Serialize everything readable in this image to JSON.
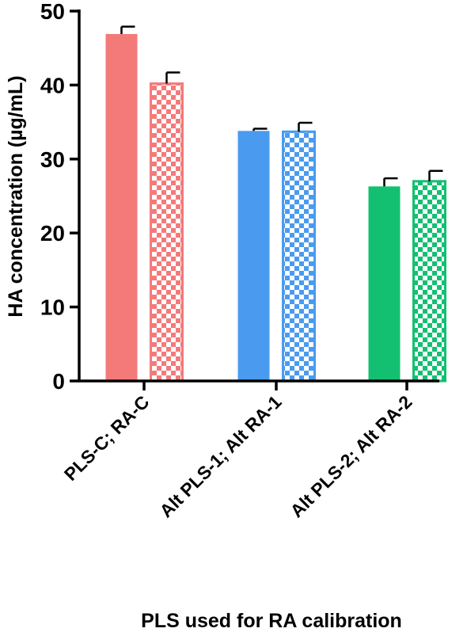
{
  "chart_data": {
    "type": "bar",
    "xlabel": "PLS used for RA calibration",
    "ylabel": "HA concentration (µg/mL)",
    "ylim": [
      0,
      50
    ],
    "yticks": [
      "0",
      "10",
      "20",
      "30",
      "40",
      "50"
    ],
    "categories": [
      "PLS-C; RA-C",
      "Alt PLS-1; Alt RA-1",
      "Alt PLS-2; Alt RA-2"
    ],
    "colors": [
      "#f47a7a",
      "#4a9bf0",
      "#13c072"
    ],
    "bars": [
      {
        "category": 0,
        "pattern": "solid",
        "value": 46.9,
        "error": 1.0
      },
      {
        "category": 0,
        "pattern": "checkered",
        "value": 40.2,
        "error": 1.5
      },
      {
        "category": 1,
        "pattern": "solid",
        "value": 33.8,
        "error": 0.3
      },
      {
        "category": 1,
        "pattern": "checkered",
        "value": 33.7,
        "error": 1.2
      },
      {
        "category": 2,
        "pattern": "solid",
        "value": 26.3,
        "error": 1.1
      },
      {
        "category": 2,
        "pattern": "checkered",
        "value": 27.0,
        "error": 1.4
      }
    ]
  }
}
